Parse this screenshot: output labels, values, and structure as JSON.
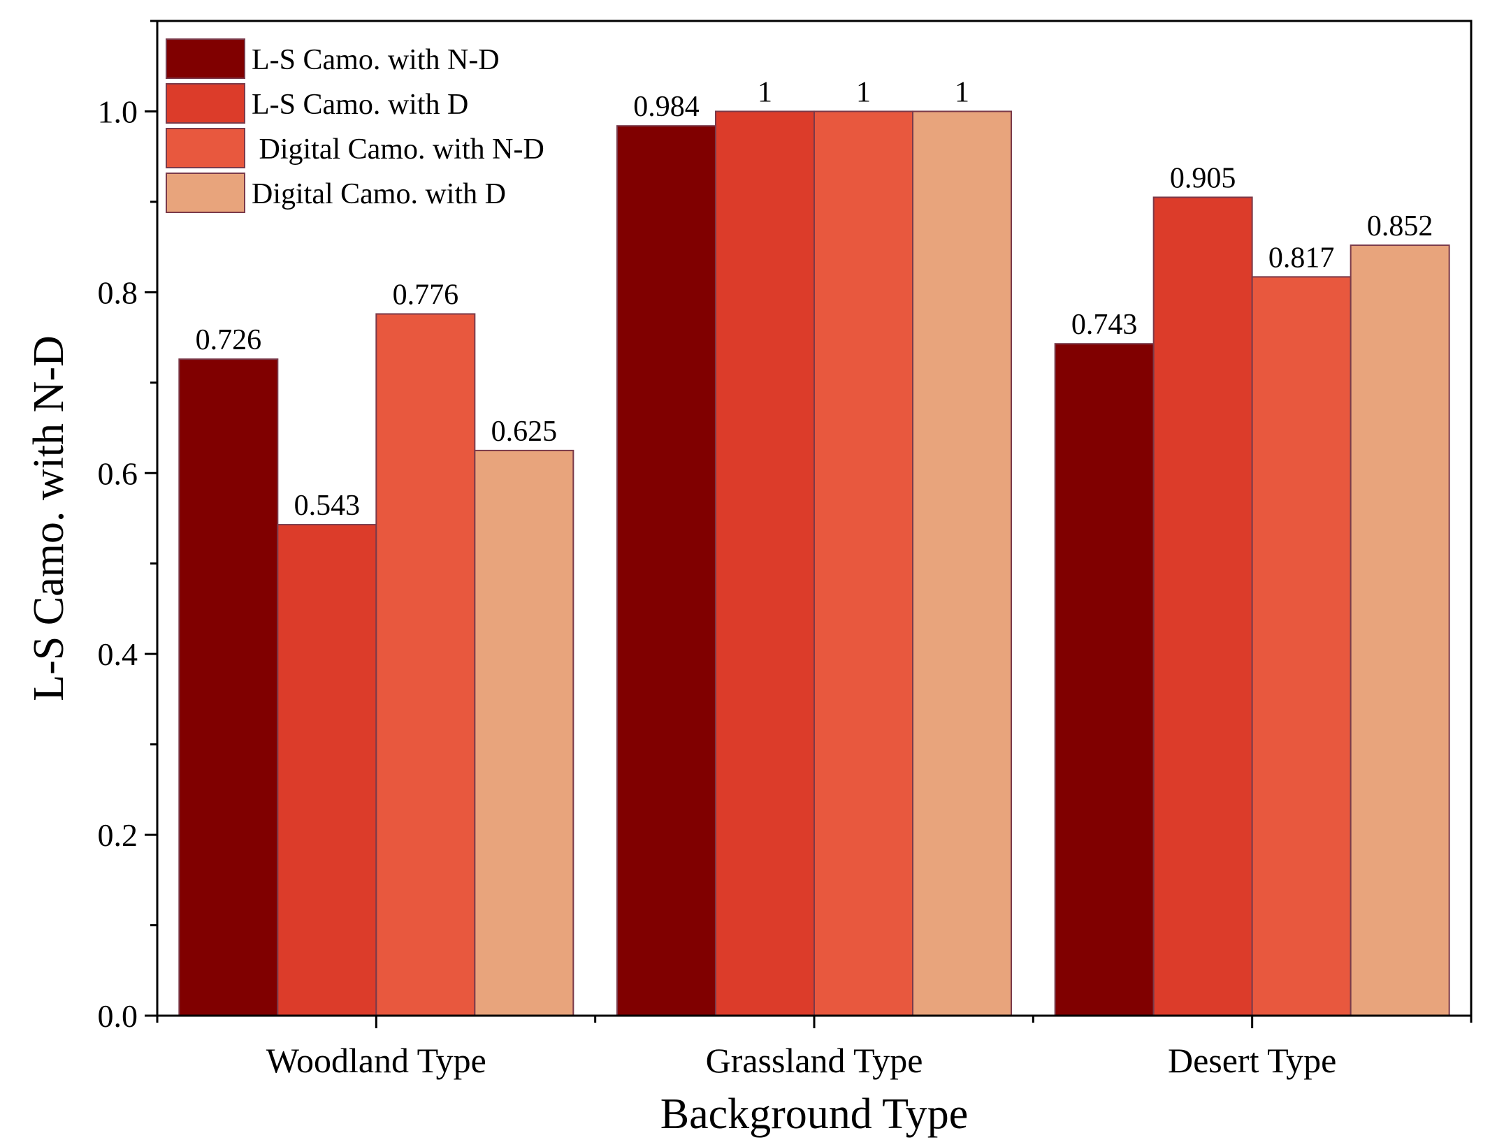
{
  "chart_data": {
    "type": "bar",
    "title": "",
    "xlabel": "Background Type",
    "ylabel": "L-S Camo. with N-D",
    "ylim": [
      0,
      1.1
    ],
    "yticks": [
      0.0,
      0.2,
      0.4,
      0.6,
      0.8,
      1.0
    ],
    "ytick_labels": [
      "0.0",
      "0.2",
      "0.4",
      "0.6",
      "0.8",
      "1.0"
    ],
    "categories": [
      "Woodland Type",
      "Grassland Type",
      "Desert Type"
    ],
    "series": [
      {
        "name": "L-S Camo. with N-D",
        "color": "#800000",
        "values": [
          0.726,
          0.984,
          0.743
        ],
        "labels": [
          "0.726",
          "0.984",
          "0.743"
        ]
      },
      {
        "name": "L-S Camo. with D",
        "color": "#dc3c2a",
        "values": [
          0.543,
          1,
          0.905
        ],
        "labels": [
          "0.543",
          "1",
          "0.905"
        ]
      },
      {
        "name": " Digital Camo. with N-D",
        "color": "#e8583e",
        "values": [
          0.776,
          1,
          0.817
        ],
        "labels": [
          "0.776",
          "1",
          "0.817"
        ]
      },
      {
        "name": "Digital Camo. with D",
        "color": "#e8a47c",
        "values": [
          0.625,
          1,
          0.852
        ],
        "labels": [
          "0.625",
          "1",
          "0.852"
        ]
      }
    ],
    "legend": "top-left",
    "grid": false
  }
}
